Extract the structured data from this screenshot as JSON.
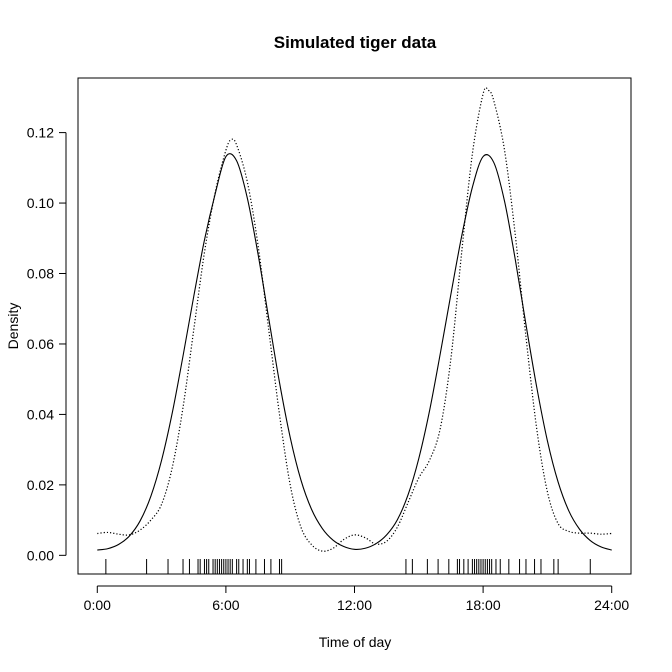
{
  "chart_data": {
    "type": "line",
    "title": "Simulated tiger data",
    "xlabel": "Time of day",
    "ylabel": "Density",
    "xlim": [
      -0.9,
      24.9
    ],
    "ylim": [
      -0.0053,
      0.1355
    ],
    "x_ticks": [
      {
        "value": 0,
        "label": "0:00"
      },
      {
        "value": 6,
        "label": "6:00"
      },
      {
        "value": 12,
        "label": "12:00"
      },
      {
        "value": 18,
        "label": "18:00"
      },
      {
        "value": 24,
        "label": "24:00"
      }
    ],
    "y_ticks": [
      {
        "value": 0.0,
        "label": "0.00"
      },
      {
        "value": 0.02,
        "label": "0.02"
      },
      {
        "value": 0.04,
        "label": "0.04"
      },
      {
        "value": 0.06,
        "label": "0.06"
      },
      {
        "value": 0.08,
        "label": "0.08"
      },
      {
        "value": 0.1,
        "label": "0.10"
      },
      {
        "value": 0.12,
        "label": "0.12"
      }
    ],
    "grid": false,
    "series": [
      {
        "style": "solid",
        "x": [
          0,
          0.5,
          1,
          1.5,
          2,
          2.5,
          3,
          3.5,
          4,
          4.5,
          5,
          5.5,
          6,
          6.5,
          7,
          7.5,
          8,
          8.5,
          9,
          9.5,
          10,
          10.5,
          11,
          11.5,
          12,
          12.5,
          13,
          13.5,
          14,
          14.5,
          15,
          15.5,
          16,
          16.5,
          17,
          17.5,
          18,
          18.5,
          19,
          19.5,
          20,
          20.5,
          21,
          21.5,
          22,
          22.5,
          23,
          23.5,
          24
        ],
        "y": [
          0.0015,
          0.0019,
          0.0031,
          0.0055,
          0.0098,
          0.0168,
          0.027,
          0.0405,
          0.0566,
          0.0735,
          0.0895,
          0.1026,
          0.1132,
          0.112,
          0.1014,
          0.0855,
          0.0672,
          0.0491,
          0.0335,
          0.0214,
          0.013,
          0.0076,
          0.0043,
          0.0025,
          0.0017,
          0.002,
          0.0033,
          0.0058,
          0.0101,
          0.0172,
          0.0275,
          0.041,
          0.0572,
          0.0742,
          0.0906,
          0.1045,
          0.1132,
          0.1115,
          0.1005,
          0.084,
          0.0655,
          0.0478,
          0.0325,
          0.0208,
          0.0126,
          0.0074,
          0.0042,
          0.0024,
          0.0015
        ]
      },
      {
        "style": "dotted",
        "x": [
          0,
          0.5,
          1,
          1.5,
          2,
          2.5,
          3,
          3.5,
          4,
          4.5,
          5,
          5.5,
          6,
          6.25,
          6.5,
          7,
          7.5,
          8,
          8.5,
          9,
          9.5,
          10,
          10.5,
          11,
          11.5,
          12,
          12.5,
          13,
          13.5,
          14,
          14.5,
          15,
          15.5,
          16,
          16.5,
          17,
          17.5,
          18,
          18.25,
          18.5,
          19,
          19.5,
          20,
          20.5,
          21,
          21.5,
          22,
          22.5,
          23,
          23.5,
          24
        ],
        "y": [
          0.0062,
          0.0065,
          0.006,
          0.0058,
          0.0072,
          0.01,
          0.0145,
          0.025,
          0.042,
          0.064,
          0.086,
          0.103,
          0.115,
          0.118,
          0.1165,
          0.106,
          0.088,
          0.064,
          0.04,
          0.02,
          0.008,
          0.003,
          0.0012,
          0.002,
          0.0045,
          0.0058,
          0.005,
          0.0032,
          0.004,
          0.008,
          0.015,
          0.022,
          0.027,
          0.036,
          0.056,
          0.086,
          0.114,
          0.131,
          0.132,
          0.129,
          0.115,
          0.091,
          0.062,
          0.036,
          0.018,
          0.009,
          0.0068,
          0.0063,
          0.0063,
          0.006,
          0.0062
        ]
      }
    ],
    "rug": [
      0.4,
      2.3,
      3.3,
      4.0,
      4.3,
      4.7,
      4.8,
      5.0,
      5.1,
      5.2,
      5.4,
      5.5,
      5.6,
      5.7,
      5.8,
      5.9,
      6.0,
      6.1,
      6.2,
      6.3,
      6.5,
      6.6,
      6.8,
      7.0,
      7.1,
      7.4,
      7.8,
      8.1,
      8.5,
      8.6,
      14.4,
      14.7,
      15.4,
      15.9,
      16.4,
      16.8,
      16.9,
      17.1,
      17.3,
      17.5,
      17.6,
      17.7,
      17.8,
      17.9,
      18.0,
      18.1,
      18.2,
      18.3,
      18.4,
      18.6,
      18.8,
      19.2,
      19.7,
      20.0,
      20.4,
      20.7,
      21.3,
      21.5,
      23.0
    ]
  }
}
